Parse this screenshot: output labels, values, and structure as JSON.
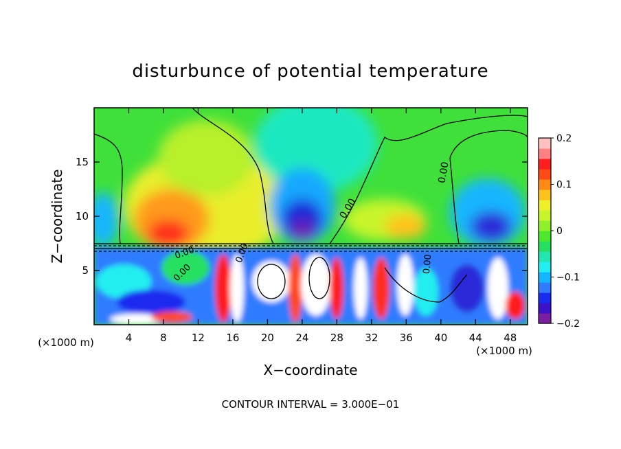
{
  "chart_data": {
    "type": "heatmap",
    "title": "disturbunce of potential temperature",
    "xlabel": "X−coordinate",
    "ylabel": "Z−coordinate",
    "x_unit_left": "(×1000 m)",
    "x_unit_right": "(×1000 m)",
    "xlim": [
      0,
      50
    ],
    "ylim": [
      0,
      20
    ],
    "x_ticks": [
      4,
      8,
      12,
      16,
      20,
      24,
      28,
      32,
      36,
      40,
      44,
      48
    ],
    "x_tick_labels": [
      "4",
      "8",
      "12",
      "16",
      "20",
      "24",
      "28",
      "32",
      "36",
      "40",
      "44",
      "48"
    ],
    "y_ticks": [
      5,
      10,
      15
    ],
    "y_tick_labels": [
      "5",
      "10",
      "15"
    ],
    "colorbar": {
      "range": [
        -0.2,
        0.2
      ],
      "tick_values": [
        0.2,
        0.1,
        0,
        -0.1,
        -0.2
      ],
      "tick_labels": [
        "0.2",
        "0.1",
        "0",
        "−0.1",
        "−0.2"
      ],
      "colors": [
        "#7a1fa2",
        "#3b12c8",
        "#1a2bf0",
        "#2f7bff",
        "#12b6ff",
        "#20eef0",
        "#22e6b0",
        "#25e060",
        "#4ce82c",
        "#8ef02a",
        "#c8f52a",
        "#f0f02a",
        "#ffc21a",
        "#ff8a12",
        "#ff4a14",
        "#ff1e1e",
        "#ff8080",
        "#ffc0c0"
      ]
    },
    "contour_labels": [
      "0.00",
      "0.00",
      "0.00",
      "0.00",
      "0.00",
      "0.00"
    ],
    "grid": false,
    "footer": "CONTOUR INTERVAL = 3.000E−01"
  }
}
